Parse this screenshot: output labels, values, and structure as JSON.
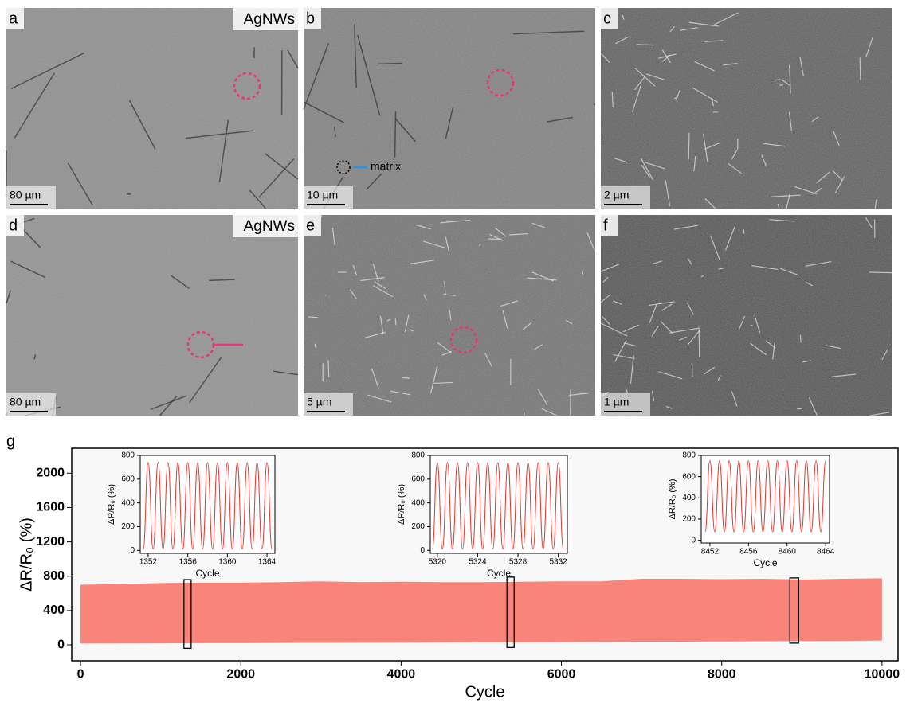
{
  "images": [
    {
      "label": "a",
      "tag": "AgNWs",
      "scale": "80 µm"
    },
    {
      "label": "b",
      "scale": "10 µm",
      "note": "matrix"
    },
    {
      "label": "c",
      "scale": "2 µm"
    },
    {
      "label": "d",
      "tag": "AgNWs",
      "scale": "80 µm"
    },
    {
      "label": "e",
      "scale": "5 µm"
    },
    {
      "label": "f",
      "scale": "1 µm"
    }
  ],
  "chart_data": [
    {
      "type": "band",
      "panel": "g",
      "x_label": "Cycle",
      "y_label": "ΔR/R₀ (%)",
      "color": "#f8847a",
      "x": [
        0,
        500,
        1000,
        1500,
        2000,
        2500,
        3000,
        3500,
        4000,
        4500,
        5000,
        5500,
        6000,
        6500,
        7000,
        7500,
        8000,
        8500,
        9000,
        9500,
        10000
      ],
      "upper": [
        700,
        710,
        720,
        725,
        725,
        730,
        740,
        730,
        735,
        730,
        730,
        735,
        740,
        740,
        770,
        770,
        765,
        770,
        760,
        770,
        775
      ],
      "lower": [
        15,
        17,
        18,
        20,
        20,
        22,
        24,
        25,
        26,
        28,
        30,
        30,
        32,
        34,
        36,
        38,
        40,
        42,
        44,
        46,
        50
      ],
      "xlim": [
        -110,
        10200
      ],
      "ylim": [
        -185,
        2290
      ],
      "xticks": [
        0,
        2000,
        4000,
        6000,
        8000,
        10000
      ],
      "yticks": [
        0,
        400,
        800,
        1200,
        1600,
        2000
      ],
      "highlight_boxes": [
        {
          "x": [
            1290,
            1380
          ],
          "y": [
            -40,
            760
          ]
        },
        {
          "x": [
            5320,
            5410
          ],
          "y": [
            -30,
            790
          ]
        },
        {
          "x": [
            8850,
            8960
          ],
          "y": [
            20,
            780
          ]
        }
      ]
    },
    {
      "type": "line",
      "x_label": "Cycle",
      "y_label": "ΔR/R₀ (%)",
      "color": "#e8342c",
      "x": [
        1351.5,
        1352,
        1352.5,
        1353,
        1353.5,
        1354,
        1354.5,
        1355,
        1355.5,
        1356,
        1356.5,
        1357,
        1357.5,
        1358,
        1358.5,
        1359,
        1359.5,
        1360,
        1360.5,
        1361,
        1361.5,
        1362,
        1362.5,
        1363,
        1363.5,
        1364,
        1364.5
      ],
      "values": [
        10,
        740,
        10,
        740,
        10,
        740,
        10,
        740,
        10,
        740,
        10,
        740,
        10,
        740,
        10,
        740,
        10,
        740,
        10,
        740,
        10,
        740,
        10,
        740,
        10,
        740,
        10
      ],
      "xlim": [
        1351.2,
        1364.8
      ],
      "ylim": [
        -25,
        800
      ],
      "xticks": [
        1352,
        1356,
        1360,
        1364
      ],
      "yticks": [
        0,
        200,
        400,
        600,
        800
      ]
    },
    {
      "type": "line",
      "x_label": "Cycle",
      "y_label": "ΔR/R₀ (%)",
      "color": "#e8342c",
      "x": [
        5319.5,
        5320,
        5320.5,
        5321,
        5321.5,
        5322,
        5322.5,
        5323,
        5323.5,
        5324,
        5324.5,
        5325,
        5325.5,
        5326,
        5326.5,
        5327,
        5327.5,
        5328,
        5328.5,
        5329,
        5329.5,
        5330,
        5330.5,
        5331,
        5331.5,
        5332,
        5332.5
      ],
      "values": [
        10,
        740,
        10,
        740,
        10,
        740,
        10,
        740,
        10,
        740,
        10,
        740,
        10,
        740,
        10,
        740,
        10,
        740,
        10,
        740,
        10,
        740,
        10,
        740,
        10,
        740,
        10
      ],
      "xlim": [
        5319.3,
        5332.9
      ],
      "ylim": [
        -25,
        800
      ],
      "xticks": [
        5320,
        5324,
        5328,
        5332
      ],
      "yticks": [
        0,
        200,
        400,
        600,
        800
      ]
    },
    {
      "type": "line",
      "x_label": "Cycle",
      "y_label": "ΔR/R₀ (%)",
      "color": "#e8342c",
      "x": [
        8451.5,
        8452,
        8452.5,
        8453,
        8453.5,
        8454,
        8454.5,
        8455,
        8455.5,
        8456,
        8456.5,
        8457,
        8457.5,
        8458,
        8458.5,
        8459,
        8459.5,
        8460,
        8460.5,
        8461,
        8461.5,
        8462,
        8462.5,
        8463,
        8463.5,
        8464
      ],
      "values": [
        80,
        750,
        80,
        750,
        80,
        750,
        80,
        750,
        80,
        750,
        80,
        750,
        80,
        750,
        80,
        750,
        80,
        750,
        80,
        750,
        80,
        750,
        80,
        750,
        80,
        750
      ],
      "xlim": [
        8451.1,
        8464.4
      ],
      "ylim": [
        -25,
        800
      ],
      "xticks": [
        8452,
        8456,
        8460,
        8464
      ],
      "yticks": [
        0,
        200,
        400,
        600,
        800
      ]
    }
  ]
}
